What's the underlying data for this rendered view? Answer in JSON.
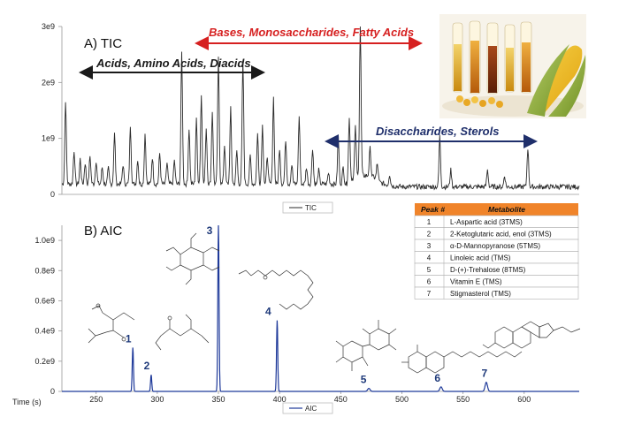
{
  "colors": {
    "tic_trace": "#2a2a2a",
    "aic_trace": "#1f3a9a",
    "arrow_red": "#d62020",
    "arrow_dark": "#1a1a1a",
    "arrow_navy": "#1f2f6b",
    "table_header": "#f0842a"
  },
  "tic_panel": {
    "title": "A) TIC",
    "legend": "TIC",
    "y_ticks": [
      "3e9",
      "2e9",
      "1e9",
      "0"
    ],
    "annotations": {
      "bases": "Bases, Monosaccharides, Fatty Acids",
      "acids": "Acids, Amino Acids, Diacids",
      "disaccharides": "Disaccharides, Sterols"
    },
    "photo_icon": "corn-and-oil-bottles-photo"
  },
  "aic_panel": {
    "title": "B) AIC",
    "legend": "AIC",
    "y_ticks": [
      "1.0e9",
      "0.8e9",
      "0.6e9",
      "0.4e9",
      "0.2e9",
      "0"
    ],
    "x_ticks": [
      "250",
      "300",
      "350",
      "400",
      "450",
      "500",
      "550",
      "600"
    ],
    "x_label": "Time (s)",
    "peak_labels": [
      "1",
      "2",
      "3",
      "4",
      "5",
      "6",
      "7"
    ]
  },
  "metabolite_table": {
    "headers": [
      "Peak #",
      "Metabolite"
    ],
    "rows": [
      [
        "1",
        "L-Aspartic acid (3TMS)"
      ],
      [
        "2",
        "2-Ketoglutaric acid, enol (3TMS)"
      ],
      [
        "3",
        "α-D-Mannopyranose (5TMS)"
      ],
      [
        "4",
        "Linoleic acid (TMS)"
      ],
      [
        "5",
        "D-(+)-Trehalose (8TMS)"
      ],
      [
        "6",
        "Vitamin E (TMS)"
      ],
      [
        "7",
        "Stigmasterol (TMS)"
      ]
    ]
  },
  "chart_data": [
    {
      "type": "line",
      "title": "A) TIC",
      "series": [
        {
          "name": "TIC"
        }
      ],
      "xlim": [
        222,
        645
      ],
      "ylim": [
        0,
        3000000000
      ],
      "x_units": "s",
      "peaks": [
        {
          "x": 225,
          "y": 1500000000
        },
        {
          "x": 232,
          "y": 600000000
        },
        {
          "x": 237,
          "y": 450000000
        },
        {
          "x": 241,
          "y": 380000000
        },
        {
          "x": 245,
          "y": 500000000
        },
        {
          "x": 250,
          "y": 420000000
        },
        {
          "x": 255,
          "y": 300000000
        },
        {
          "x": 260,
          "y": 280000000
        },
        {
          "x": 265,
          "y": 900000000
        },
        {
          "x": 272,
          "y": 350000000
        },
        {
          "x": 278,
          "y": 1050000000
        },
        {
          "x": 284,
          "y": 450000000
        },
        {
          "x": 290,
          "y": 900000000
        },
        {
          "x": 296,
          "y": 480000000
        },
        {
          "x": 302,
          "y": 550000000
        },
        {
          "x": 308,
          "y": 380000000
        },
        {
          "x": 314,
          "y": 420000000
        },
        {
          "x": 320,
          "y": 2350000000
        },
        {
          "x": 326,
          "y": 1000000000
        },
        {
          "x": 332,
          "y": 1150000000
        },
        {
          "x": 336,
          "y": 1600000000
        },
        {
          "x": 340,
          "y": 1000000000
        },
        {
          "x": 345,
          "y": 1300000000
        },
        {
          "x": 350,
          "y": 2250000000
        },
        {
          "x": 355,
          "y": 700000000
        },
        {
          "x": 360,
          "y": 1350000000
        },
        {
          "x": 365,
          "y": 600000000
        },
        {
          "x": 370,
          "y": 2200000000
        },
        {
          "x": 376,
          "y": 500000000
        },
        {
          "x": 382,
          "y": 900000000
        },
        {
          "x": 386,
          "y": 1050000000
        },
        {
          "x": 390,
          "y": 500000000
        },
        {
          "x": 395,
          "y": 1550000000
        },
        {
          "x": 400,
          "y": 650000000
        },
        {
          "x": 405,
          "y": 800000000
        },
        {
          "x": 410,
          "y": 350000000
        },
        {
          "x": 416,
          "y": 1200000000
        },
        {
          "x": 422,
          "y": 300000000
        },
        {
          "x": 427,
          "y": 650000000
        },
        {
          "x": 432,
          "y": 250000000
        },
        {
          "x": 440,
          "y": 200000000
        },
        {
          "x": 448,
          "y": 850000000
        },
        {
          "x": 452,
          "y": 300000000
        },
        {
          "x": 457,
          "y": 1100000000
        },
        {
          "x": 462,
          "y": 900000000
        },
        {
          "x": 466,
          "y": 2800000000
        },
        {
          "x": 474,
          "y": 500000000
        },
        {
          "x": 480,
          "y": 300000000
        },
        {
          "x": 490,
          "y": 200000000
        },
        {
          "x": 531,
          "y": 900000000
        },
        {
          "x": 540,
          "y": 300000000
        },
        {
          "x": 570,
          "y": 300000000
        },
        {
          "x": 584,
          "y": 200000000
        },
        {
          "x": 603,
          "y": 700000000
        }
      ]
    },
    {
      "type": "line",
      "title": "B) AIC",
      "xlabel": "Time (s)",
      "series": [
        {
          "name": "AIC"
        }
      ],
      "xlim": [
        222,
        645
      ],
      "ylim": [
        0,
        1100000000
      ],
      "x_units": "s",
      "peaks": [
        {
          "label": "1",
          "x": 280,
          "y": 290000000
        },
        {
          "label": "2",
          "x": 295,
          "y": 110000000
        },
        {
          "label": "3",
          "x": 350,
          "y": 1100000000
        },
        {
          "label": "4",
          "x": 398,
          "y": 470000000
        },
        {
          "label": "5",
          "x": 473,
          "y": 20000000
        },
        {
          "label": "6",
          "x": 532,
          "y": 30000000
        },
        {
          "label": "7",
          "x": 569,
          "y": 60000000
        }
      ]
    }
  ]
}
